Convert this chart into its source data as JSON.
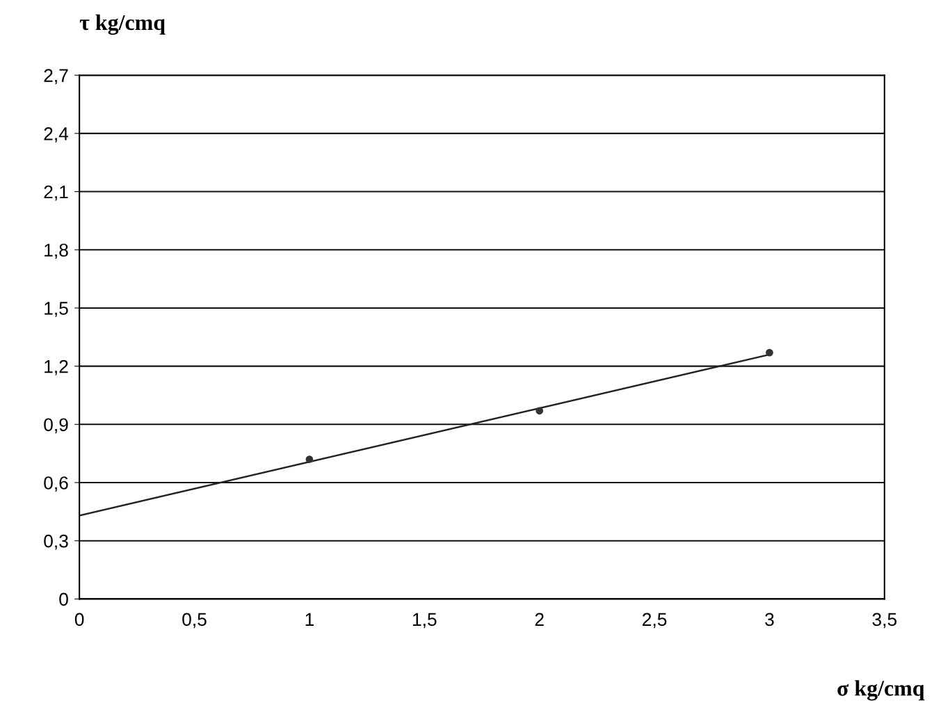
{
  "chart_data": {
    "type": "scatter",
    "xlabel": "σ kg/cmq",
    "ylabel": "τ kg/cmq",
    "xlim": [
      0,
      3.5
    ],
    "ylim": [
      0,
      2.7
    ],
    "xticks": [
      0,
      {
        "value": 0.5,
        "label": "0,5"
      },
      1,
      {
        "value": 1.5,
        "label": "1,5"
      },
      2,
      {
        "value": 2.5,
        "label": "2,5"
      },
      3,
      {
        "value": 3.5,
        "label": "3,5"
      }
    ],
    "yticks": [
      0,
      {
        "value": 0.3,
        "label": "0,3"
      },
      {
        "value": 0.6,
        "label": "0,6"
      },
      {
        "value": 0.9,
        "label": "0,9"
      },
      {
        "value": 1.2,
        "label": "1,2"
      },
      {
        "value": 1.5,
        "label": "1,5"
      },
      {
        "value": 1.8,
        "label": "1,8"
      },
      {
        "value": 2.1,
        "label": "2,1"
      },
      {
        "value": 2.4,
        "label": "2,4"
      },
      {
        "value": 2.7,
        "label": "2,7"
      }
    ],
    "grid": "y",
    "marker": "circle",
    "series": [
      {
        "color": "#333333",
        "x": [
          1,
          2,
          3
        ],
        "values": [
          0.72,
          0.97,
          1.27
        ]
      },
      {
        "type": "line",
        "color": "#222222",
        "marker": "none",
        "line_style": "solid",
        "x": [
          0,
          3
        ],
        "values": [
          0.43,
          1.26
        ]
      }
    ]
  }
}
